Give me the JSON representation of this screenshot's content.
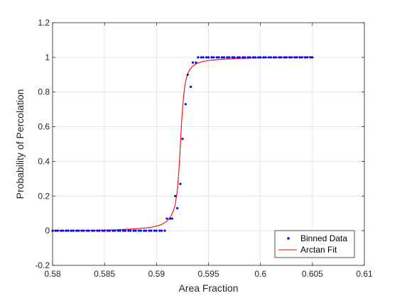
{
  "chart_data": {
    "type": "scatter",
    "xlabel": "Area Fraction",
    "ylabel": "Probability of Percolation",
    "xlim": [
      0.58,
      0.61
    ],
    "ylim": [
      -0.2,
      1.2
    ],
    "x_ticks": [
      "0.58",
      "0.585",
      "0.59",
      "0.595",
      "0.6",
      "0.605",
      "0.61"
    ],
    "y_ticks": [
      "-0.2",
      "0",
      "0.2",
      "0.4",
      "0.6",
      "0.8",
      "1",
      "1.2"
    ],
    "grid": true,
    "legend_position": "bottom-right",
    "series": [
      {
        "name": "Binned Data",
        "style": "points",
        "color": "#0000ff",
        "x": [
          0.58,
          0.5803,
          0.5805,
          0.5808,
          0.581,
          0.5813,
          0.5815,
          0.5818,
          0.582,
          0.5823,
          0.5825,
          0.5828,
          0.583,
          0.5833,
          0.5835,
          0.5838,
          0.584,
          0.5843,
          0.5845,
          0.5848,
          0.585,
          0.5853,
          0.5855,
          0.5858,
          0.586,
          0.5863,
          0.5865,
          0.5868,
          0.587,
          0.5873,
          0.5875,
          0.5878,
          0.588,
          0.5883,
          0.5885,
          0.5888,
          0.589,
          0.5893,
          0.5895,
          0.5898,
          0.59,
          0.5903,
          0.5905,
          0.5908,
          0.591,
          0.5913,
          0.5915,
          0.5918,
          0.592,
          0.5923,
          0.5925,
          0.5928,
          0.593,
          0.5933,
          0.5935,
          0.5938,
          0.594,
          0.5943,
          0.5945,
          0.5948,
          0.595,
          0.5953,
          0.5955,
          0.5958,
          0.596,
          0.5963,
          0.5965,
          0.5968,
          0.597,
          0.5973,
          0.5975,
          0.5978,
          0.598,
          0.5983,
          0.5985,
          0.5988,
          0.599,
          0.5993,
          0.5995,
          0.5998,
          0.6,
          0.6003,
          0.6005,
          0.6008,
          0.601,
          0.6013,
          0.6015,
          0.6018,
          0.602,
          0.6023,
          0.6025,
          0.6028,
          0.603,
          0.6033,
          0.6035,
          0.6038,
          0.604,
          0.6043,
          0.6045,
          0.6048,
          0.605
        ],
        "y": [
          0,
          0,
          0,
          0,
          0,
          0,
          0,
          0,
          0,
          0,
          0,
          0,
          0,
          0,
          0,
          0,
          0,
          0,
          0,
          0,
          0,
          0,
          0,
          0,
          0,
          0,
          0,
          0,
          0,
          0,
          0,
          0,
          0,
          0,
          0,
          0,
          0,
          0,
          0,
          0,
          0,
          0,
          0,
          0,
          0.07,
          0.07,
          0.07,
          0.2,
          0.13,
          0.27,
          0.53,
          0.73,
          0.9,
          0.83,
          0.97,
          0.97,
          1,
          1,
          1,
          1,
          1,
          1,
          1,
          1,
          1,
          1,
          1,
          1,
          1,
          1,
          1,
          1,
          1,
          1,
          1,
          1,
          1,
          1,
          1,
          1,
          1,
          1,
          1,
          1,
          1,
          1,
          1,
          1,
          1,
          1,
          1,
          1,
          1,
          1,
          1,
          1,
          1,
          1,
          1,
          1,
          1
        ]
      },
      {
        "name": "Arctan Fit",
        "style": "line",
        "color": "#ff0000",
        "x": [
          0.58,
          0.582,
          0.584,
          0.586,
          0.587,
          0.588,
          0.589,
          0.5895,
          0.59,
          0.5905,
          0.591,
          0.5913,
          0.5916,
          0.5918,
          0.592,
          0.5921,
          0.5922,
          0.5923,
          0.5924,
          0.5925,
          0.5926,
          0.5927,
          0.5928,
          0.5929,
          0.593,
          0.5932,
          0.5935,
          0.5938,
          0.594,
          0.5945,
          0.595,
          0.596,
          0.597,
          0.598,
          0.6,
          0.602,
          0.604,
          0.605
        ],
        "y": [
          -0.002,
          0.0,
          0.002,
          0.005,
          0.008,
          0.011,
          0.016,
          0.02,
          0.026,
          0.036,
          0.055,
          0.075,
          0.11,
          0.15,
          0.23,
          0.3,
          0.39,
          0.5,
          0.61,
          0.7,
          0.77,
          0.825,
          0.86,
          0.885,
          0.905,
          0.93,
          0.95,
          0.962,
          0.968,
          0.977,
          0.982,
          0.988,
          0.991,
          0.994,
          0.997,
          1.0,
          1.003,
          1.004
        ]
      }
    ]
  }
}
